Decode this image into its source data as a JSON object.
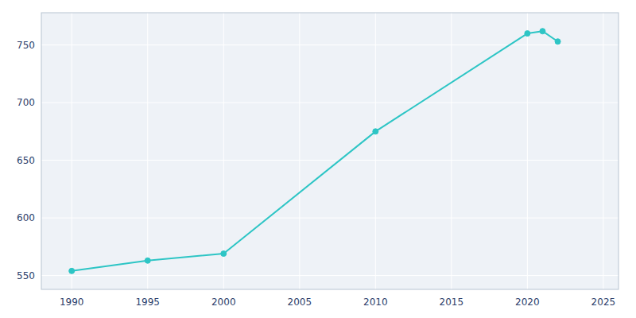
{
  "chart_data": {
    "type": "line",
    "x": [
      1990,
      1995,
      2000,
      2010,
      2020,
      2021,
      2022
    ],
    "values": [
      554,
      563,
      569,
      675,
      760,
      762,
      753
    ],
    "color": "#2DC5C5",
    "marker": "circle",
    "xlim": [
      1988,
      2026
    ],
    "ylim": [
      538,
      778
    ],
    "xticks": [
      1990,
      1995,
      2000,
      2005,
      2010,
      2015,
      2020,
      2025
    ],
    "yticks": [
      550,
      600,
      650,
      700,
      750
    ],
    "grid": true
  }
}
